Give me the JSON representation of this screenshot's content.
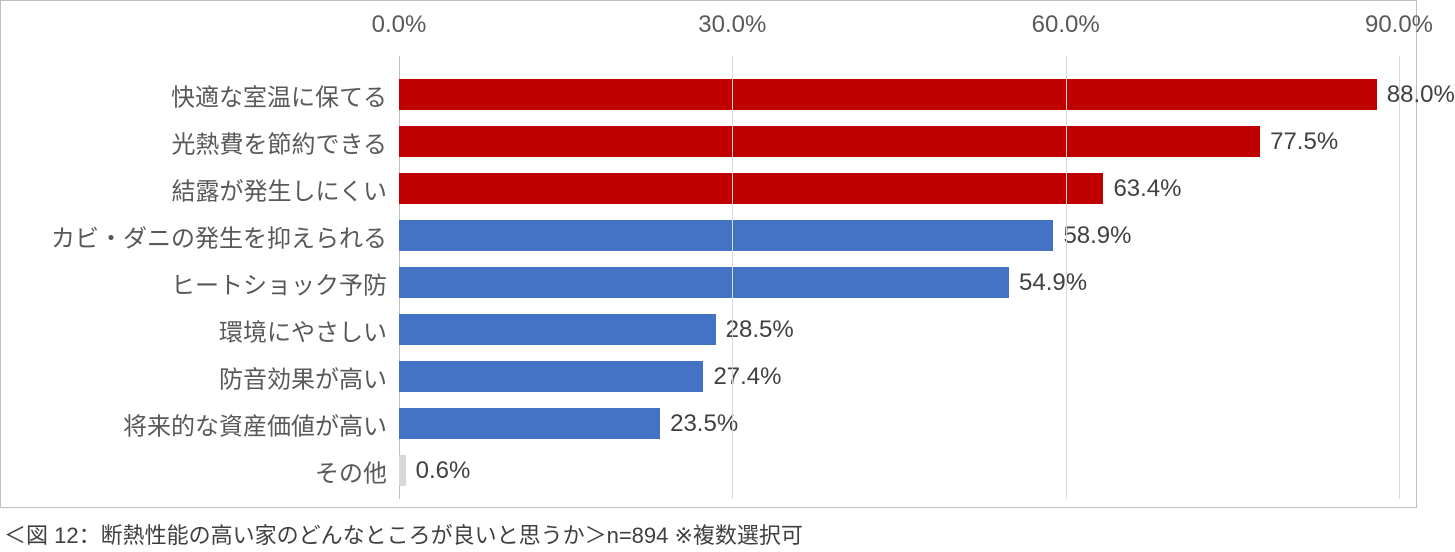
{
  "chart": {
    "type": "bar-horizontal",
    "x_axis": {
      "min": 0.0,
      "max": 90.0,
      "tick_step": 30.0,
      "ticks": [
        0.0,
        30.0,
        60.0,
        90.0
      ],
      "tick_labels": [
        "0.0%",
        "30.0%",
        "60.0%",
        "90.0%"
      ],
      "tick_fontsize": 24,
      "tick_color": "#595959",
      "gridline_color": "#d9d9d9"
    },
    "category_label_fontsize": 24,
    "category_label_color": "#595959",
    "value_label_fontsize": 24,
    "value_label_color": "#404040",
    "bar_height_ratio": 0.66,
    "background_color": "#ffffff",
    "border_color": "#bfbfbf",
    "colors": {
      "highlight": "#c00000",
      "normal": "#4472c4",
      "other": "#d9d9d9"
    },
    "items": [
      {
        "label": "快適な室温に保てる",
        "value": 88.0,
        "value_label": "88.0%",
        "color": "#c00000"
      },
      {
        "label": "光熱費を節約できる",
        "value": 77.5,
        "value_label": "77.5%",
        "color": "#c00000"
      },
      {
        "label": "結露が発生しにくい",
        "value": 63.4,
        "value_label": "63.4%",
        "color": "#c00000"
      },
      {
        "label": "カビ・ダニの発生を抑えられる",
        "value": 58.9,
        "value_label": "58.9%",
        "color": "#4472c4"
      },
      {
        "label": "ヒートショック予防",
        "value": 54.9,
        "value_label": "54.9%",
        "color": "#4472c4"
      },
      {
        "label": "環境にやさしい",
        "value": 28.5,
        "value_label": "28.5%",
        "color": "#4472c4"
      },
      {
        "label": "防音効果が高い",
        "value": 27.4,
        "value_label": "27.4%",
        "color": "#4472c4"
      },
      {
        "label": "将来的な資産価値が高い",
        "value": 23.5,
        "value_label": "23.5%",
        "color": "#4472c4"
      },
      {
        "label": "その他",
        "value": 0.6,
        "value_label": "0.6%",
        "color": "#d9d9d9"
      }
    ]
  },
  "caption": "＜図 12：断熱性能の高い家のどんなところが良いと思うか＞n=894 ※複数選択可"
}
